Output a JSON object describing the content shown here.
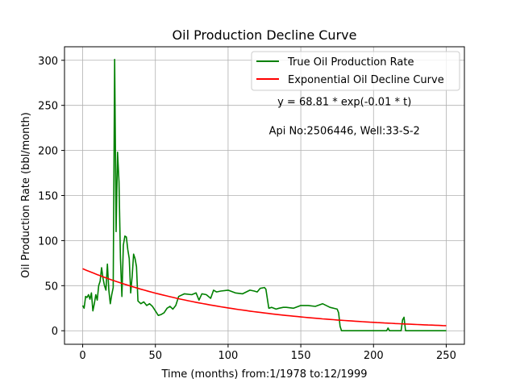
{
  "chart_data": {
    "type": "line",
    "title": "Oil Production Decline Curve",
    "xlabel": "Time (months) from:1/1978 to:12/1999",
    "ylabel": "Oil Production Rate (bbl/month)",
    "xlim": [
      -12.5,
      262.5
    ],
    "ylim": [
      -15,
      315
    ],
    "xticks": [
      0,
      50,
      100,
      150,
      200,
      250
    ],
    "yticks": [
      0,
      50,
      100,
      150,
      200,
      250,
      300
    ],
    "grid": true,
    "legend_position": "top-right",
    "annotations": [
      {
        "text": "y = 68.81 * exp(-0.01 * t)",
        "x": 180,
        "y": 250
      },
      {
        "text": "Api No:2506446, Well:33-S-2",
        "x": 180,
        "y": 218
      }
    ],
    "series": [
      {
        "name": "True Oil Production Rate",
        "color": "#008000",
        "x": [
          0,
          1,
          2,
          3,
          4,
          5,
          6,
          7,
          8,
          9,
          10,
          11,
          12,
          13,
          14,
          15,
          16,
          17,
          18,
          19,
          20,
          21,
          22,
          23,
          24,
          25,
          26,
          27,
          28,
          29,
          30,
          31,
          32,
          33,
          34,
          35,
          36,
          37,
          38,
          40,
          42,
          44,
          46,
          48,
          50,
          52,
          54,
          56,
          58,
          60,
          62,
          64,
          66,
          70,
          75,
          78,
          80,
          82,
          85,
          88,
          90,
          92,
          95,
          100,
          105,
          110,
          115,
          118,
          120,
          122,
          125,
          126,
          128,
          130,
          133,
          135,
          138,
          140,
          145,
          150,
          155,
          160,
          165,
          170,
          175,
          176,
          177,
          178,
          180,
          185,
          190,
          195,
          200,
          205,
          209,
          210,
          211,
          215,
          219,
          220,
          221,
          222,
          225,
          230,
          235,
          240,
          245,
          250
        ],
        "values": [
          28,
          25,
          38,
          37,
          40,
          35,
          42,
          22,
          30,
          40,
          34,
          50,
          55,
          70,
          58,
          50,
          45,
          74,
          45,
          30,
          40,
          48,
          301,
          110,
          198,
          165,
          80,
          38,
          95,
          105,
          104,
          90,
          80,
          42,
          60,
          85,
          80,
          71,
          33,
          30,
          32,
          28,
          30,
          27,
          22,
          17,
          18,
          20,
          25,
          27,
          24,
          28,
          38,
          41,
          40,
          42,
          34,
          41,
          40,
          36,
          45,
          43,
          44,
          45,
          42,
          41,
          45,
          44,
          43,
          47,
          48,
          46,
          25,
          26,
          24,
          25,
          26,
          26,
          25,
          28,
          28,
          27,
          30,
          26,
          24,
          20,
          5,
          0,
          0,
          0,
          0,
          0,
          0,
          0,
          0,
          3,
          0,
          0,
          0,
          12,
          15,
          0,
          0,
          0,
          0,
          0,
          0,
          0
        ]
      },
      {
        "name": "Exponential Oil Decline Curve",
        "color": "#ff0000",
        "model": {
          "a": 68.81,
          "b": -0.01
        },
        "x": [
          0,
          25,
          50,
          75,
          100,
          125,
          150,
          175,
          200,
          225,
          250
        ],
        "values": [
          68.81,
          53.59,
          41.73,
          32.5,
          25.31,
          19.71,
          15.35,
          11.96,
          9.31,
          7.25,
          5.65
        ]
      }
    ]
  }
}
